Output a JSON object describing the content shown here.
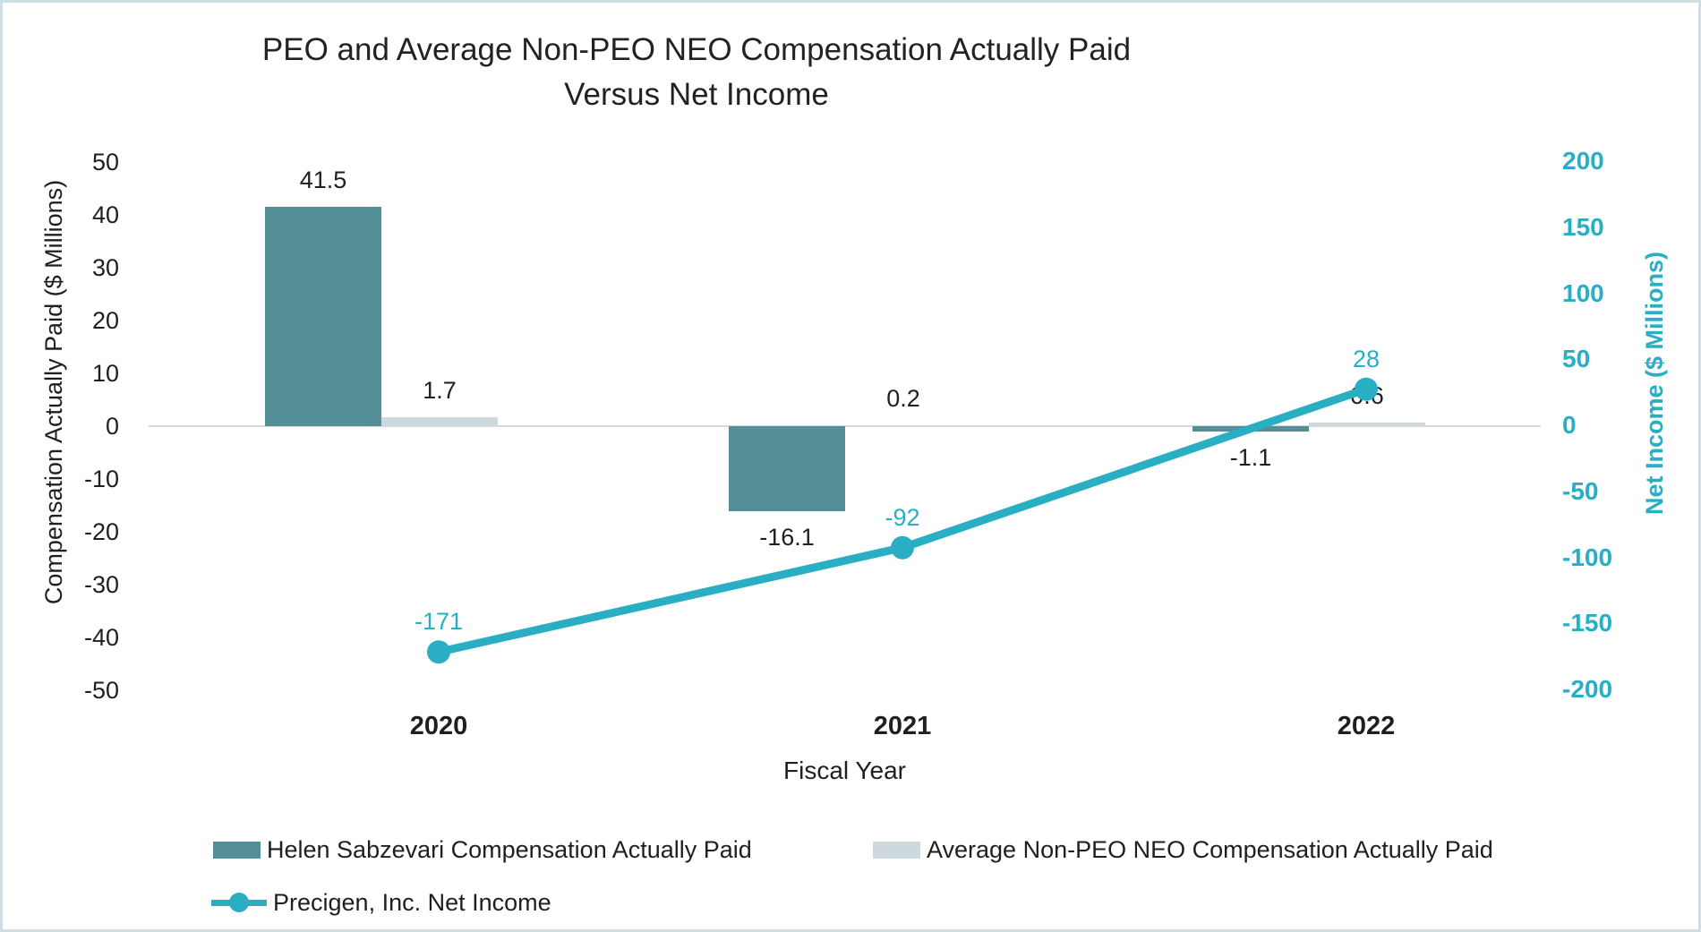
{
  "frame": {
    "background_color": "#ffffff",
    "border_color": "#cfdee3",
    "zero_gridline_color": "#d9d9d9",
    "text_color": "#1f1f1f"
  },
  "chart_data": {
    "type": "combo-bar-line",
    "title_line1": "PEO and Average Non-PEO NEO Compensation Actually Paid",
    "title_line2": "Versus Net Income",
    "xlabel": "Fiscal Year",
    "categories": [
      "2020",
      "2021",
      "2022"
    ],
    "left_axis": {
      "label": "Compensation Actually Paid ($ Millions)",
      "min": -50,
      "max": 50,
      "step": 10,
      "ticks": [
        "50",
        "40",
        "30",
        "20",
        "10",
        "0",
        "-10",
        "-20",
        "-30",
        "-40",
        "-50"
      ],
      "color": "#1f1f1f"
    },
    "right_axis": {
      "label": "Net Income ($ Millions)",
      "min": -200,
      "max": 200,
      "step": 50,
      "ticks": [
        "200",
        "150",
        "100",
        "50",
        "0",
        "-50",
        "-100",
        "-150",
        "-200"
      ],
      "color": "#29aec4"
    },
    "series": [
      {
        "name": "Helen Sabzevari Compensation Actually Paid",
        "slug": "helen-sabzevari-cap",
        "type": "bar",
        "axis": "left",
        "color": "#548f98",
        "values": [
          41.5,
          -16.1,
          -1.1
        ],
        "labels": [
          "41.5",
          "-16.1",
          "-1.1"
        ]
      },
      {
        "name": "Average Non-PEO NEO Compensation Actually Paid",
        "slug": "avg-non-peo-neo-cap",
        "type": "bar",
        "axis": "left",
        "color": "#cdd9dc",
        "values": [
          1.7,
          0.2,
          0.6
        ],
        "labels": [
          "1.7",
          "0.2",
          "0.6"
        ]
      },
      {
        "name": "Precigen, Inc. Net Income",
        "slug": "precigen-net-income",
        "type": "line",
        "axis": "right",
        "color": "#29aec4",
        "values": [
          -171,
          -92,
          28
        ],
        "labels": [
          "-171",
          "-92",
          "28"
        ]
      }
    ],
    "gridlines": "zero-only",
    "legend_position": "bottom-left"
  }
}
